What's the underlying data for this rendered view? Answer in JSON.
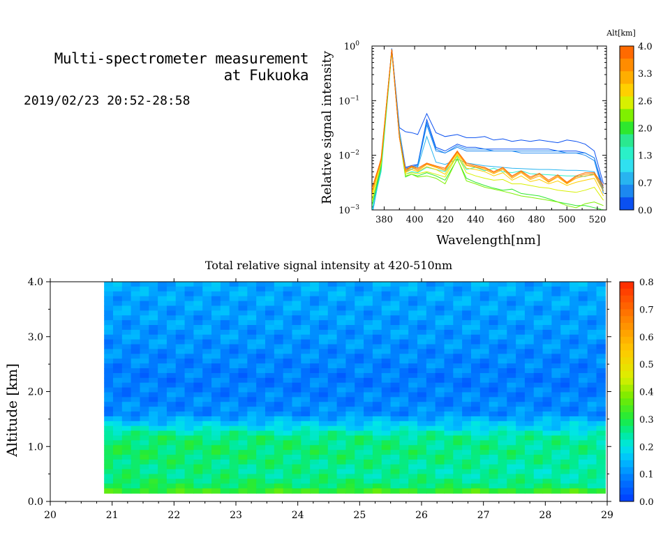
{
  "header": {
    "title_line1": "Multi-spectrometer measurement",
    "title_line2": "at Fukuoka",
    "datetime": "2019/02/23 20:52-28:58"
  },
  "chart_data": [
    {
      "type": "line",
      "xlabel": "Wavelength[nm]",
      "ylabel": "Relative signal intensity",
      "yscale": "log",
      "xlim": [
        372,
        526
      ],
      "ylim": [
        0.001,
        1
      ],
      "x_ticks": [
        380,
        400,
        420,
        440,
        460,
        480,
        500,
        520
      ],
      "y_ticks": [
        {
          "value": 0.001,
          "base": "10",
          "exp": "−3"
        },
        {
          "value": 0.01,
          "base": "10",
          "exp": "−2"
        },
        {
          "value": 0.1,
          "base": "10",
          "exp": "−1"
        },
        {
          "value": 1,
          "base": "10",
          "exp": "0"
        }
      ],
      "x": [
        372,
        378,
        385,
        390,
        394,
        398,
        402,
        408,
        414,
        420,
        428,
        434,
        440,
        446,
        452,
        458,
        464,
        470,
        476,
        482,
        488,
        494,
        500,
        506,
        512,
        518,
        524
      ],
      "colorbar": {
        "title": "Alt[km]",
        "ticks": [
          "4.0",
          "3.3",
          "2.6",
          "2.0",
          "1.3",
          "0.7",
          "0.0"
        ],
        "colors": [
          "#ff6a00",
          "#ff8c00",
          "#ffae00",
          "#ffd000",
          "#d8f000",
          "#7ff000",
          "#2ee82e",
          "#2ae890",
          "#2af0c8",
          "#30e0f0",
          "#28b4f0",
          "#1c88f0",
          "#0a50f0"
        ]
      },
      "series": [
        {
          "alt_km": 0.0,
          "values": [
            0.0009,
            0.008,
            0.9,
            0.032,
            0.027,
            0.026,
            0.024,
            0.058,
            0.026,
            0.022,
            0.024,
            0.021,
            0.021,
            0.022,
            0.019,
            0.02,
            0.018,
            0.019,
            0.018,
            0.019,
            0.018,
            0.017,
            0.019,
            0.018,
            0.016,
            0.012,
            0.003
          ]
        },
        {
          "alt_km": 0.15,
          "values": [
            0.0009,
            0.007,
            0.9,
            0.028,
            0.006,
            0.0065,
            0.0068,
            0.045,
            0.014,
            0.012,
            0.016,
            0.014,
            0.014,
            0.013,
            0.013,
            0.013,
            0.013,
            0.013,
            0.013,
            0.013,
            0.013,
            0.012,
            0.012,
            0.012,
            0.011,
            0.009,
            0.0025
          ]
        },
        {
          "alt_km": 0.3,
          "values": [
            0.0009,
            0.007,
            0.9,
            0.027,
            0.0058,
            0.0062,
            0.0066,
            0.04,
            0.013,
            0.011,
            0.015,
            0.013,
            0.013,
            0.013,
            0.012,
            0.012,
            0.012,
            0.012,
            0.012,
            0.012,
            0.012,
            0.012,
            0.011,
            0.011,
            0.011,
            0.009,
            0.0022
          ]
        },
        {
          "alt_km": 0.45,
          "values": [
            0.0008,
            0.006,
            0.88,
            0.026,
            0.0055,
            0.006,
            0.0063,
            0.036,
            0.012,
            0.011,
            0.014,
            0.012,
            0.012,
            0.012,
            0.012,
            0.012,
            0.012,
            0.011,
            0.011,
            0.011,
            0.011,
            0.011,
            0.011,
            0.011,
            0.01,
            0.008,
            0.002
          ]
        },
        {
          "alt_km": 0.6,
          "values": [
            0.0008,
            0.006,
            0.85,
            0.025,
            0.005,
            0.0056,
            0.006,
            0.022,
            0.0075,
            0.0068,
            0.0085,
            0.0072,
            0.0068,
            0.0064,
            0.0062,
            0.006,
            0.0058,
            0.0057,
            0.0056,
            0.0055,
            0.0055,
            0.0054,
            0.0053,
            0.0053,
            0.0052,
            0.005,
            0.0022
          ]
        },
        {
          "alt_km": 1.3,
          "values": [
            0.001,
            0.005,
            0.8,
            0.024,
            0.0045,
            0.005,
            0.0048,
            0.006,
            0.0055,
            0.005,
            0.0095,
            0.0055,
            0.006,
            0.0052,
            0.0058,
            0.005,
            0.0048,
            0.0052,
            0.0046,
            0.0045,
            0.0044,
            0.0043,
            0.0042,
            0.0042,
            0.0041,
            0.0046,
            0.0025
          ]
        },
        {
          "alt_km": 2.0,
          "values": [
            0.0012,
            0.006,
            0.8,
            0.022,
            0.004,
            0.0045,
            0.0042,
            0.0048,
            0.0042,
            0.0035,
            0.0085,
            0.0038,
            0.0032,
            0.0028,
            0.0025,
            0.0023,
            0.0024,
            0.002,
            0.0019,
            0.0018,
            0.0016,
            0.0014,
            0.0013,
            0.0012,
            0.0012,
            0.0011,
            0.001
          ]
        },
        {
          "alt_km": 2.2,
          "values": [
            0.0014,
            0.007,
            0.82,
            0.022,
            0.0042,
            0.0045,
            0.004,
            0.0042,
            0.0038,
            0.003,
            0.0088,
            0.0034,
            0.003,
            0.0026,
            0.0024,
            0.0022,
            0.002,
            0.0018,
            0.0017,
            0.0016,
            0.0015,
            0.0014,
            0.0012,
            0.0011,
            0.0013,
            0.0014,
            0.0012
          ]
        },
        {
          "alt_km": 2.6,
          "values": [
            0.0015,
            0.007,
            0.85,
            0.023,
            0.0045,
            0.0048,
            0.0046,
            0.005,
            0.0045,
            0.004,
            0.01,
            0.0048,
            0.0042,
            0.0038,
            0.0035,
            0.0036,
            0.003,
            0.003,
            0.0028,
            0.0026,
            0.0025,
            0.0023,
            0.0022,
            0.0021,
            0.0023,
            0.0026,
            0.0015
          ]
        },
        {
          "alt_km": 2.9,
          "values": [
            0.0018,
            0.008,
            0.85,
            0.022,
            0.0048,
            0.0055,
            0.005,
            0.0062,
            0.0055,
            0.0045,
            0.0105,
            0.0058,
            0.0055,
            0.005,
            0.0042,
            0.0048,
            0.0035,
            0.0042,
            0.0033,
            0.0036,
            0.003,
            0.0034,
            0.0028,
            0.0032,
            0.0035,
            0.0038,
            0.0018
          ]
        },
        {
          "alt_km": 3.3,
          "values": [
            0.002,
            0.009,
            0.86,
            0.021,
            0.005,
            0.006,
            0.0052,
            0.0068,
            0.006,
            0.0052,
            0.0112,
            0.0065,
            0.006,
            0.0055,
            0.0046,
            0.0055,
            0.0038,
            0.0048,
            0.0036,
            0.0042,
            0.0032,
            0.004,
            0.003,
            0.0038,
            0.0042,
            0.0044,
            0.0022
          ]
        },
        {
          "alt_km": 3.6,
          "values": [
            0.0022,
            0.008,
            0.86,
            0.021,
            0.0052,
            0.0062,
            0.0055,
            0.007,
            0.0062,
            0.0055,
            0.0115,
            0.0068,
            0.0062,
            0.0058,
            0.0048,
            0.0058,
            0.004,
            0.005,
            0.0038,
            0.0045,
            0.0033,
            0.0042,
            0.0031,
            0.004,
            0.0045,
            0.0046,
            0.0025
          ]
        },
        {
          "alt_km": 4.0,
          "values": [
            0.0025,
            0.0085,
            0.87,
            0.021,
            0.0055,
            0.0064,
            0.0058,
            0.0072,
            0.0064,
            0.0058,
            0.012,
            0.0072,
            0.0065,
            0.006,
            0.005,
            0.006,
            0.0042,
            0.0052,
            0.004,
            0.0047,
            0.0035,
            0.0044,
            0.0032,
            0.0042,
            0.0048,
            0.0048,
            0.0028
          ]
        }
      ]
    },
    {
      "type": "heatmap",
      "title": "Total relative signal intensity at 420-510nm",
      "ylabel": "Altitude [km]",
      "xlim": [
        20,
        29
      ],
      "ylim": [
        0,
        4
      ],
      "x_ticks": [
        "20",
        "21",
        "22",
        "23",
        "24",
        "25",
        "26",
        "27",
        "28",
        "29"
      ],
      "y_ticks": [
        "0.0",
        "1.0",
        "2.0",
        "3.0",
        "4.0"
      ],
      "data_x_range": [
        20.87,
        28.97
      ],
      "data_y_range": [
        0.15,
        4.0
      ],
      "colorbar": {
        "ticks": [
          "0.0",
          "0.1",
          "0.2",
          "0.3",
          "0.4",
          "0.5",
          "0.6",
          "0.7",
          "0.8"
        ],
        "range": [
          0,
          0.8
        ]
      },
      "profile": [
        {
          "alt": 0.15,
          "value": 0.48
        },
        {
          "alt": 0.2,
          "value": 0.3
        },
        {
          "alt": 0.5,
          "value": 0.26
        },
        {
          "alt": 0.9,
          "value": 0.28
        },
        {
          "alt": 1.2,
          "value": 0.27
        },
        {
          "alt": 1.4,
          "value": 0.17
        },
        {
          "alt": 1.6,
          "value": 0.1
        },
        {
          "alt": 2.2,
          "value": 0.08
        },
        {
          "alt": 3.0,
          "value": 0.11
        },
        {
          "alt": 4.0,
          "value": 0.13
        }
      ]
    }
  ]
}
